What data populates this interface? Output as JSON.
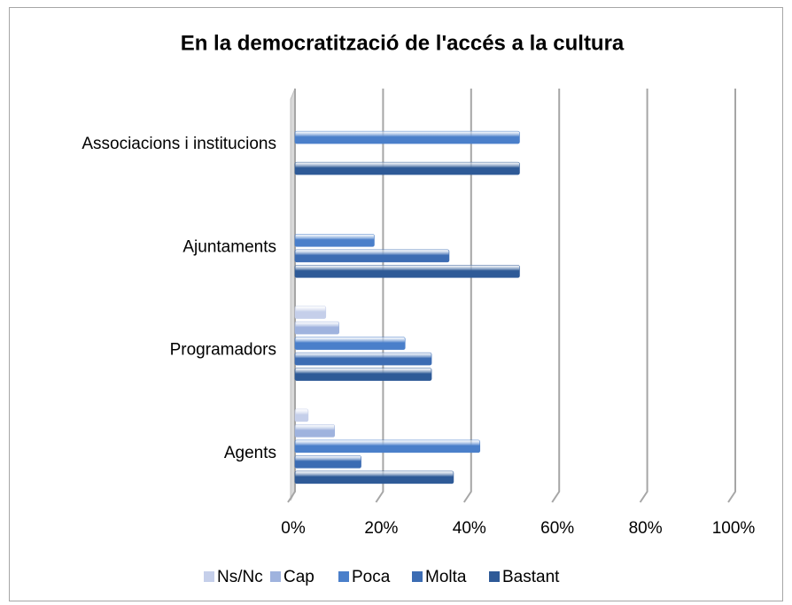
{
  "chart_data": {
    "type": "bar",
    "orientation": "horizontal",
    "title": "En la democratització de l'accés a la cultura",
    "categories": [
      "Associacions i institucions",
      "Ajuntaments",
      "Programadors",
      "Agents"
    ],
    "series": [
      {
        "name": "Ns/Nc",
        "color": "#c5cfea",
        "values": [
          0,
          0,
          7,
          3
        ]
      },
      {
        "name": "Cap",
        "color": "#9fb3de",
        "values": [
          0,
          0,
          10,
          9
        ]
      },
      {
        "name": "Poca",
        "color": "#4a7fca",
        "values": [
          51,
          18,
          25,
          42
        ]
      },
      {
        "name": "Molta",
        "color": "#3c6cb3",
        "values": [
          0,
          35,
          31,
          15
        ]
      },
      {
        "name": "Bastant",
        "color": "#2e5a97",
        "values": [
          51,
          51,
          31,
          36
        ]
      }
    ],
    "xlim": [
      0,
      100
    ],
    "xticks": [
      {
        "value": 0,
        "label": "0%"
      },
      {
        "value": 20,
        "label": "20%"
      },
      {
        "value": 40,
        "label": "40%"
      },
      {
        "value": 60,
        "label": "60%"
      },
      {
        "value": 80,
        "label": "80%"
      },
      {
        "value": 100,
        "label": "100%"
      }
    ],
    "grid": true,
    "legend": "bottom"
  }
}
